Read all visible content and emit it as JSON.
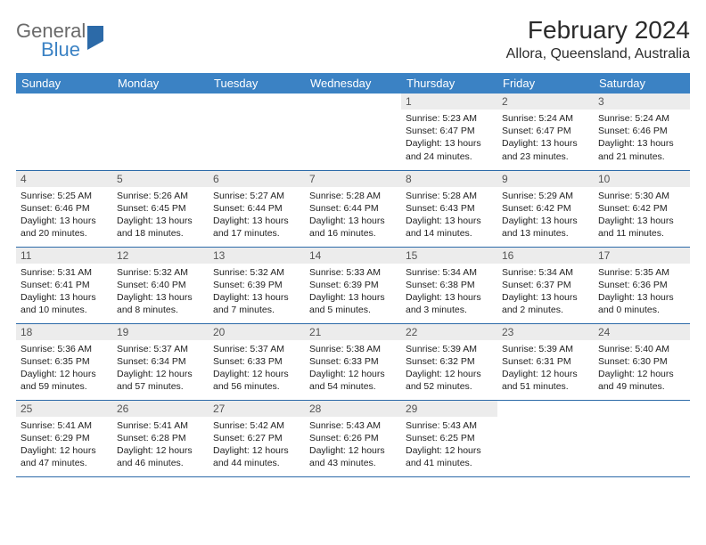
{
  "logo": {
    "general": "General",
    "blue": "Blue"
  },
  "title": "February 2024",
  "location": "Allora, Queensland, Australia",
  "colors": {
    "header_bg": "#3b82c4",
    "header_text": "#ffffff",
    "daynum_bg": "#ececec",
    "rule": "#2c6aa8",
    "text": "#222222"
  },
  "weekdays": [
    "Sunday",
    "Monday",
    "Tuesday",
    "Wednesday",
    "Thursday",
    "Friday",
    "Saturday"
  ],
  "weeks": [
    [
      {
        "n": "",
        "sr": "",
        "ss": "",
        "dl": ""
      },
      {
        "n": "",
        "sr": "",
        "ss": "",
        "dl": ""
      },
      {
        "n": "",
        "sr": "",
        "ss": "",
        "dl": ""
      },
      {
        "n": "",
        "sr": "",
        "ss": "",
        "dl": ""
      },
      {
        "n": "1",
        "sr": "Sunrise: 5:23 AM",
        "ss": "Sunset: 6:47 PM",
        "dl": "Daylight: 13 hours and 24 minutes."
      },
      {
        "n": "2",
        "sr": "Sunrise: 5:24 AM",
        "ss": "Sunset: 6:47 PM",
        "dl": "Daylight: 13 hours and 23 minutes."
      },
      {
        "n": "3",
        "sr": "Sunrise: 5:24 AM",
        "ss": "Sunset: 6:46 PM",
        "dl": "Daylight: 13 hours and 21 minutes."
      }
    ],
    [
      {
        "n": "4",
        "sr": "Sunrise: 5:25 AM",
        "ss": "Sunset: 6:46 PM",
        "dl": "Daylight: 13 hours and 20 minutes."
      },
      {
        "n": "5",
        "sr": "Sunrise: 5:26 AM",
        "ss": "Sunset: 6:45 PM",
        "dl": "Daylight: 13 hours and 18 minutes."
      },
      {
        "n": "6",
        "sr": "Sunrise: 5:27 AM",
        "ss": "Sunset: 6:44 PM",
        "dl": "Daylight: 13 hours and 17 minutes."
      },
      {
        "n": "7",
        "sr": "Sunrise: 5:28 AM",
        "ss": "Sunset: 6:44 PM",
        "dl": "Daylight: 13 hours and 16 minutes."
      },
      {
        "n": "8",
        "sr": "Sunrise: 5:28 AM",
        "ss": "Sunset: 6:43 PM",
        "dl": "Daylight: 13 hours and 14 minutes."
      },
      {
        "n": "9",
        "sr": "Sunrise: 5:29 AM",
        "ss": "Sunset: 6:42 PM",
        "dl": "Daylight: 13 hours and 13 minutes."
      },
      {
        "n": "10",
        "sr": "Sunrise: 5:30 AM",
        "ss": "Sunset: 6:42 PM",
        "dl": "Daylight: 13 hours and 11 minutes."
      }
    ],
    [
      {
        "n": "11",
        "sr": "Sunrise: 5:31 AM",
        "ss": "Sunset: 6:41 PM",
        "dl": "Daylight: 13 hours and 10 minutes."
      },
      {
        "n": "12",
        "sr": "Sunrise: 5:32 AM",
        "ss": "Sunset: 6:40 PM",
        "dl": "Daylight: 13 hours and 8 minutes."
      },
      {
        "n": "13",
        "sr": "Sunrise: 5:32 AM",
        "ss": "Sunset: 6:39 PM",
        "dl": "Daylight: 13 hours and 7 minutes."
      },
      {
        "n": "14",
        "sr": "Sunrise: 5:33 AM",
        "ss": "Sunset: 6:39 PM",
        "dl": "Daylight: 13 hours and 5 minutes."
      },
      {
        "n": "15",
        "sr": "Sunrise: 5:34 AM",
        "ss": "Sunset: 6:38 PM",
        "dl": "Daylight: 13 hours and 3 minutes."
      },
      {
        "n": "16",
        "sr": "Sunrise: 5:34 AM",
        "ss": "Sunset: 6:37 PM",
        "dl": "Daylight: 13 hours and 2 minutes."
      },
      {
        "n": "17",
        "sr": "Sunrise: 5:35 AM",
        "ss": "Sunset: 6:36 PM",
        "dl": "Daylight: 13 hours and 0 minutes."
      }
    ],
    [
      {
        "n": "18",
        "sr": "Sunrise: 5:36 AM",
        "ss": "Sunset: 6:35 PM",
        "dl": "Daylight: 12 hours and 59 minutes."
      },
      {
        "n": "19",
        "sr": "Sunrise: 5:37 AM",
        "ss": "Sunset: 6:34 PM",
        "dl": "Daylight: 12 hours and 57 minutes."
      },
      {
        "n": "20",
        "sr": "Sunrise: 5:37 AM",
        "ss": "Sunset: 6:33 PM",
        "dl": "Daylight: 12 hours and 56 minutes."
      },
      {
        "n": "21",
        "sr": "Sunrise: 5:38 AM",
        "ss": "Sunset: 6:33 PM",
        "dl": "Daylight: 12 hours and 54 minutes."
      },
      {
        "n": "22",
        "sr": "Sunrise: 5:39 AM",
        "ss": "Sunset: 6:32 PM",
        "dl": "Daylight: 12 hours and 52 minutes."
      },
      {
        "n": "23",
        "sr": "Sunrise: 5:39 AM",
        "ss": "Sunset: 6:31 PM",
        "dl": "Daylight: 12 hours and 51 minutes."
      },
      {
        "n": "24",
        "sr": "Sunrise: 5:40 AM",
        "ss": "Sunset: 6:30 PM",
        "dl": "Daylight: 12 hours and 49 minutes."
      }
    ],
    [
      {
        "n": "25",
        "sr": "Sunrise: 5:41 AM",
        "ss": "Sunset: 6:29 PM",
        "dl": "Daylight: 12 hours and 47 minutes."
      },
      {
        "n": "26",
        "sr": "Sunrise: 5:41 AM",
        "ss": "Sunset: 6:28 PM",
        "dl": "Daylight: 12 hours and 46 minutes."
      },
      {
        "n": "27",
        "sr": "Sunrise: 5:42 AM",
        "ss": "Sunset: 6:27 PM",
        "dl": "Daylight: 12 hours and 44 minutes."
      },
      {
        "n": "28",
        "sr": "Sunrise: 5:43 AM",
        "ss": "Sunset: 6:26 PM",
        "dl": "Daylight: 12 hours and 43 minutes."
      },
      {
        "n": "29",
        "sr": "Sunrise: 5:43 AM",
        "ss": "Sunset: 6:25 PM",
        "dl": "Daylight: 12 hours and 41 minutes."
      },
      {
        "n": "",
        "sr": "",
        "ss": "",
        "dl": ""
      },
      {
        "n": "",
        "sr": "",
        "ss": "",
        "dl": ""
      }
    ]
  ]
}
